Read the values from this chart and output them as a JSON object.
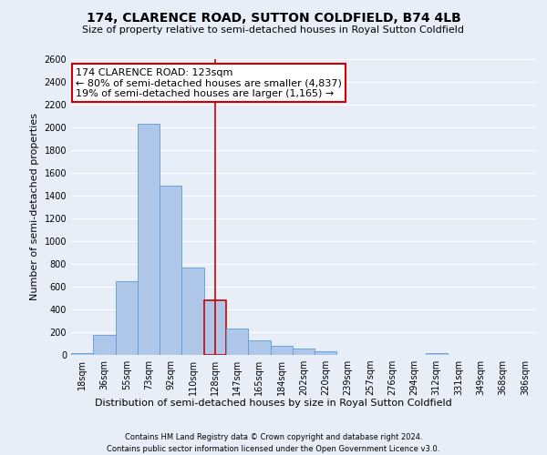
{
  "title": "174, CLARENCE ROAD, SUTTON COLDFIELD, B74 4LB",
  "subtitle": "Size of property relative to semi-detached houses in Royal Sutton Coldfield",
  "xlabel_bottom": "Distribution of semi-detached houses by size in Royal Sutton Coldfield",
  "ylabel": "Number of semi-detached properties",
  "footnote1": "Contains HM Land Registry data © Crown copyright and database right 2024.",
  "footnote2": "Contains public sector information licensed under the Open Government Licence v3.0.",
  "bar_labels": [
    "18sqm",
    "36sqm",
    "55sqm",
    "73sqm",
    "92sqm",
    "110sqm",
    "128sqm",
    "147sqm",
    "165sqm",
    "184sqm",
    "202sqm",
    "220sqm",
    "239sqm",
    "257sqm",
    "276sqm",
    "294sqm",
    "312sqm",
    "331sqm",
    "349sqm",
    "368sqm",
    "386sqm"
  ],
  "bar_values": [
    20,
    180,
    650,
    2030,
    1490,
    770,
    480,
    235,
    125,
    80,
    60,
    35,
    0,
    0,
    0,
    0,
    20,
    0,
    0,
    0,
    0
  ],
  "bar_color": "#aec6e8",
  "bar_edgecolor": "#5b9bd5",
  "highlight_index": 6,
  "highlight_color": "#cc0000",
  "ylim": [
    0,
    2600
  ],
  "yticks": [
    0,
    200,
    400,
    600,
    800,
    1000,
    1200,
    1400,
    1600,
    1800,
    2000,
    2200,
    2400,
    2600
  ],
  "annotation_title": "174 CLARENCE ROAD: 123sqm",
  "annotation_line1": "← 80% of semi-detached houses are smaller (4,837)",
  "annotation_line2": "19% of semi-detached houses are larger (1,165) →",
  "annotation_box_facecolor": "#ffffff",
  "annotation_box_edgecolor": "#cc0000",
  "bg_color": "#e8eef8",
  "plot_bg_color": "#e8eef8",
  "grid_color": "#ffffff",
  "title_fontsize": 10,
  "subtitle_fontsize": 8,
  "ylabel_fontsize": 8,
  "tick_fontsize": 7,
  "annot_fontsize": 8
}
